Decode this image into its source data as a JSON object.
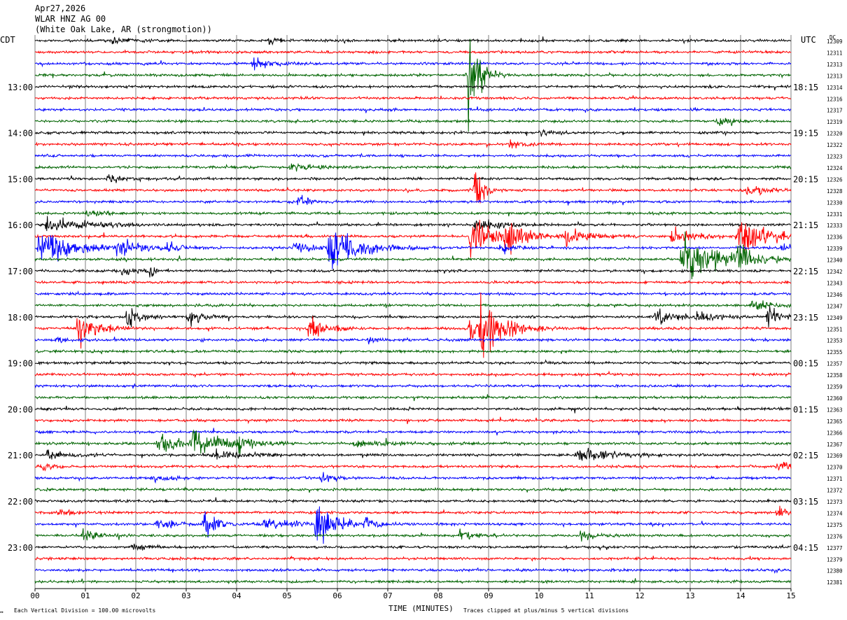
{
  "header": {
    "date": "Apr27,2026",
    "channel": "WLAR HNZ AG 00",
    "location": "(White Oak Lake, AR (strongmotion))"
  },
  "left_zone_label": "CDT",
  "right_zone_label": "UTC",
  "dc_label": "DC",
  "footer": {
    "scale_note": "Each Vertical Division =  100.00 microvolts",
    "clip_note": "Traces clipped at plus/minus 5 vertical divisions",
    "corner_mark": "↔"
  },
  "colors": {
    "trace_cycle": [
      "#000000",
      "#ff0000",
      "#0000ff",
      "#006400"
    ],
    "grid": "#7f7f7f",
    "background": "#ffffff"
  },
  "chart_data": {
    "type": "line",
    "subtype": "helicorder",
    "xlabel": "TIME (MINUTES)",
    "x_ticks": [
      "00",
      "01",
      "02",
      "03",
      "04",
      "05",
      "06",
      "07",
      "08",
      "09",
      "10",
      "11",
      "12",
      "13",
      "14",
      "15"
    ],
    "xlim": [
      0,
      15
    ],
    "minutes_per_trace": 15,
    "grid": true,
    "left_hour_labels": [
      "13:00",
      "14:00",
      "15:00",
      "16:00",
      "17:00",
      "18:00",
      "19:00",
      "20:00",
      "21:00",
      "22:00",
      "23:00"
    ],
    "right_hour_labels": [
      "18:15",
      "19:15",
      "20:15",
      "21:15",
      "22:15",
      "23:15",
      "00:15",
      "01:15",
      "02:15",
      "03:15",
      "04:15"
    ],
    "hour_label_trace_index": [
      4,
      8,
      12,
      16,
      20,
      24,
      28,
      32,
      36,
      40,
      44
    ],
    "dc_offsets": [
      "12309",
      "12311",
      "12313",
      "12313",
      "12314",
      "12316",
      "12317",
      "12319",
      "12320",
      "12322",
      "12323",
      "12324",
      "12326",
      "12328",
      "12330",
      "12331",
      "12333",
      "12336",
      "12339",
      "12340",
      "12342",
      "12343",
      "12346",
      "12347",
      "12349",
      "12351",
      "12353",
      "12355",
      "12357",
      "12358",
      "12359",
      "12360",
      "12363",
      "12365",
      "12366",
      "12367",
      "12369",
      "12370",
      "12371",
      "12372",
      "12373",
      "12374",
      "12375",
      "12376",
      "12377",
      "12379",
      "12380",
      "12381"
    ],
    "events": [
      {
        "trace": 3,
        "minute": 8.55,
        "dur": 0.35,
        "amp": 70
      },
      {
        "trace": 2,
        "minute": 4.3,
        "dur": 0.5,
        "amp": 8
      },
      {
        "trace": 0,
        "minute": 1.5,
        "dur": 0.5,
        "amp": 5
      },
      {
        "trace": 0,
        "minute": 4.6,
        "dur": 0.3,
        "amp": 5
      },
      {
        "trace": 9,
        "minute": 9.4,
        "dur": 0.4,
        "amp": 6
      },
      {
        "trace": 8,
        "minute": 10.0,
        "dur": 0.4,
        "amp": 5
      },
      {
        "trace": 7,
        "minute": 13.5,
        "dur": 0.5,
        "amp": 6
      },
      {
        "trace": 11,
        "minute": 5.0,
        "dur": 1.0,
        "amp": 4
      },
      {
        "trace": 13,
        "minute": 14.1,
        "dur": 0.5,
        "amp": 8
      },
      {
        "trace": 13,
        "minute": 8.7,
        "dur": 0.2,
        "amp": 45
      },
      {
        "trace": 14,
        "minute": 5.2,
        "dur": 0.3,
        "amp": 7
      },
      {
        "trace": 12,
        "minute": 1.4,
        "dur": 0.6,
        "amp": 5
      },
      {
        "trace": 15,
        "minute": 1.0,
        "dur": 0.4,
        "amp": 6
      },
      {
        "trace": 17,
        "minute": 8.6,
        "dur": 0.8,
        "amp": 32
      },
      {
        "trace": 17,
        "minute": 9.3,
        "dur": 0.5,
        "amp": 20
      },
      {
        "trace": 17,
        "minute": 12.6,
        "dur": 0.7,
        "amp": 14
      },
      {
        "trace": 17,
        "minute": 13.9,
        "dur": 1.1,
        "amp": 22
      },
      {
        "trace": 17,
        "minute": 10.5,
        "dur": 0.8,
        "amp": 10
      },
      {
        "trace": 18,
        "minute": 0.05,
        "dur": 1.0,
        "amp": 28
      },
      {
        "trace": 18,
        "minute": 1.6,
        "dur": 0.6,
        "amp": 12
      },
      {
        "trace": 18,
        "minute": 5.1,
        "dur": 0.6,
        "amp": 8
      },
      {
        "trace": 18,
        "minute": 5.8,
        "dur": 0.9,
        "amp": 30
      },
      {
        "trace": 18,
        "minute": 2.6,
        "dur": 0.4,
        "amp": 7
      },
      {
        "trace": 18,
        "minute": 9.2,
        "dur": 0.4,
        "amp": 8
      },
      {
        "trace": 18,
        "minute": 14.8,
        "dur": 0.3,
        "amp": 9
      },
      {
        "trace": 19,
        "minute": 12.8,
        "dur": 1.2,
        "amp": 30
      },
      {
        "trace": 19,
        "minute": 13.9,
        "dur": 0.4,
        "amp": 24
      },
      {
        "trace": 16,
        "minute": 0.2,
        "dur": 1.2,
        "amp": 10
      },
      {
        "trace": 16,
        "minute": 8.7,
        "dur": 0.7,
        "amp": 10
      },
      {
        "trace": 20,
        "minute": 1.7,
        "dur": 0.3,
        "amp": 10
      },
      {
        "trace": 20,
        "minute": 2.25,
        "dur": 0.15,
        "amp": 10
      },
      {
        "trace": 23,
        "minute": 14.2,
        "dur": 0.5,
        "amp": 8
      },
      {
        "trace": 24,
        "minute": 1.8,
        "dur": 0.4,
        "amp": 16
      },
      {
        "trace": 24,
        "minute": 3.0,
        "dur": 0.4,
        "amp": 14
      },
      {
        "trace": 24,
        "minute": 12.3,
        "dur": 0.6,
        "amp": 14
      },
      {
        "trace": 24,
        "minute": 13.1,
        "dur": 0.6,
        "amp": 10
      },
      {
        "trace": 24,
        "minute": 14.5,
        "dur": 0.3,
        "amp": 18
      },
      {
        "trace": 25,
        "minute": 0.8,
        "dur": 0.5,
        "amp": 30
      },
      {
        "trace": 25,
        "minute": 5.4,
        "dur": 0.4,
        "amp": 28
      },
      {
        "trace": 25,
        "minute": 8.8,
        "dur": 0.7,
        "amp": 48
      },
      {
        "trace": 25,
        "minute": 8.6,
        "dur": 0.2,
        "amp": 22
      },
      {
        "trace": 26,
        "minute": 0.4,
        "dur": 0.2,
        "amp": 7
      },
      {
        "trace": 26,
        "minute": 6.6,
        "dur": 0.2,
        "amp": 5
      },
      {
        "trace": 35,
        "minute": 2.4,
        "dur": 1.0,
        "amp": 14
      },
      {
        "trace": 35,
        "minute": 3.1,
        "dur": 0.9,
        "amp": 16
      },
      {
        "trace": 35,
        "minute": 4.0,
        "dur": 0.5,
        "amp": 8
      },
      {
        "trace": 35,
        "minute": 6.3,
        "dur": 1.5,
        "amp": 4
      },
      {
        "trace": 36,
        "minute": 10.7,
        "dur": 1.1,
        "amp": 9
      },
      {
        "trace": 36,
        "minute": 0.2,
        "dur": 0.8,
        "amp": 5
      },
      {
        "trace": 36,
        "minute": 3.5,
        "dur": 1.1,
        "amp": 6
      },
      {
        "trace": 37,
        "minute": 0.1,
        "dur": 0.3,
        "amp": 6
      },
      {
        "trace": 37,
        "minute": 14.7,
        "dur": 0.3,
        "amp": 10
      },
      {
        "trace": 38,
        "minute": 5.65,
        "dur": 0.3,
        "amp": 8
      },
      {
        "trace": 38,
        "minute": 2.3,
        "dur": 0.5,
        "amp": 5
      },
      {
        "trace": 41,
        "minute": 0.4,
        "dur": 0.5,
        "amp": 6
      },
      {
        "trace": 41,
        "minute": 14.7,
        "dur": 0.4,
        "amp": 9
      },
      {
        "trace": 42,
        "minute": 5.55,
        "dur": 0.6,
        "amp": 30
      },
      {
        "trace": 42,
        "minute": 3.3,
        "dur": 0.4,
        "amp": 22
      },
      {
        "trace": 42,
        "minute": 2.4,
        "dur": 0.5,
        "amp": 10
      },
      {
        "trace": 42,
        "minute": 4.5,
        "dur": 1.0,
        "amp": 8
      },
      {
        "trace": 42,
        "minute": 6.5,
        "dur": 0.3,
        "amp": 9
      },
      {
        "trace": 43,
        "minute": 0.9,
        "dur": 0.5,
        "amp": 8
      },
      {
        "trace": 43,
        "minute": 8.4,
        "dur": 0.5,
        "amp": 8
      },
      {
        "trace": 43,
        "minute": 10.8,
        "dur": 0.4,
        "amp": 8
      },
      {
        "trace": 44,
        "minute": 1.9,
        "dur": 0.4,
        "amp": 6
      }
    ]
  }
}
